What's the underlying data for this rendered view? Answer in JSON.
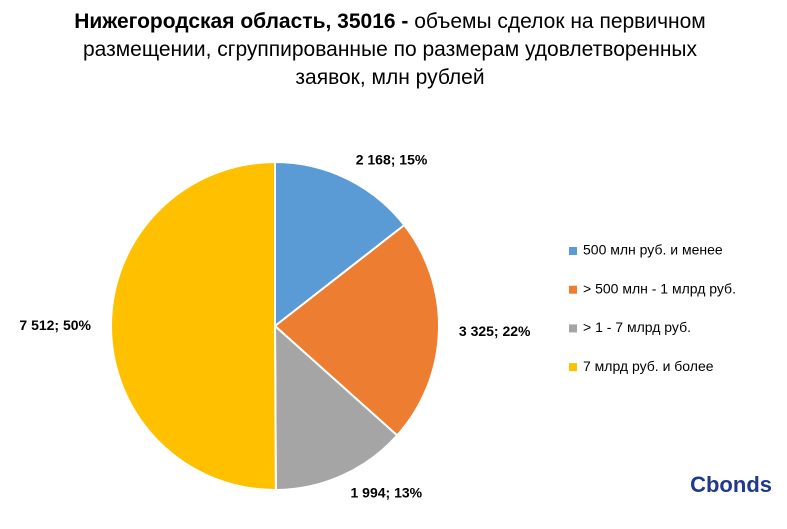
{
  "chart_data": {
    "type": "pie",
    "title": "Нижегородская область, 35016 -",
    "subtitle": "объемы сделок на первичном размещении, сгруппированные по размерам удовлетворенных заявок, млн рублей",
    "categories": [
      "500 млн руб. и менее",
      "> 500 млн - 1 млрд руб.",
      "> 1 - 7 млрд руб.",
      "7 млрд руб. и более"
    ],
    "values": [
      2168,
      3325,
      1994,
      7512
    ],
    "value_labels": [
      "2 168; 15%",
      "3 325; 22%",
      "1 994; 13%",
      "7 512; 50%"
    ],
    "colors": [
      "#5b9bd5",
      "#ed7d31",
      "#a5a5a5",
      "#ffc000"
    ],
    "legend": "right"
  },
  "logo": "Cbonds"
}
